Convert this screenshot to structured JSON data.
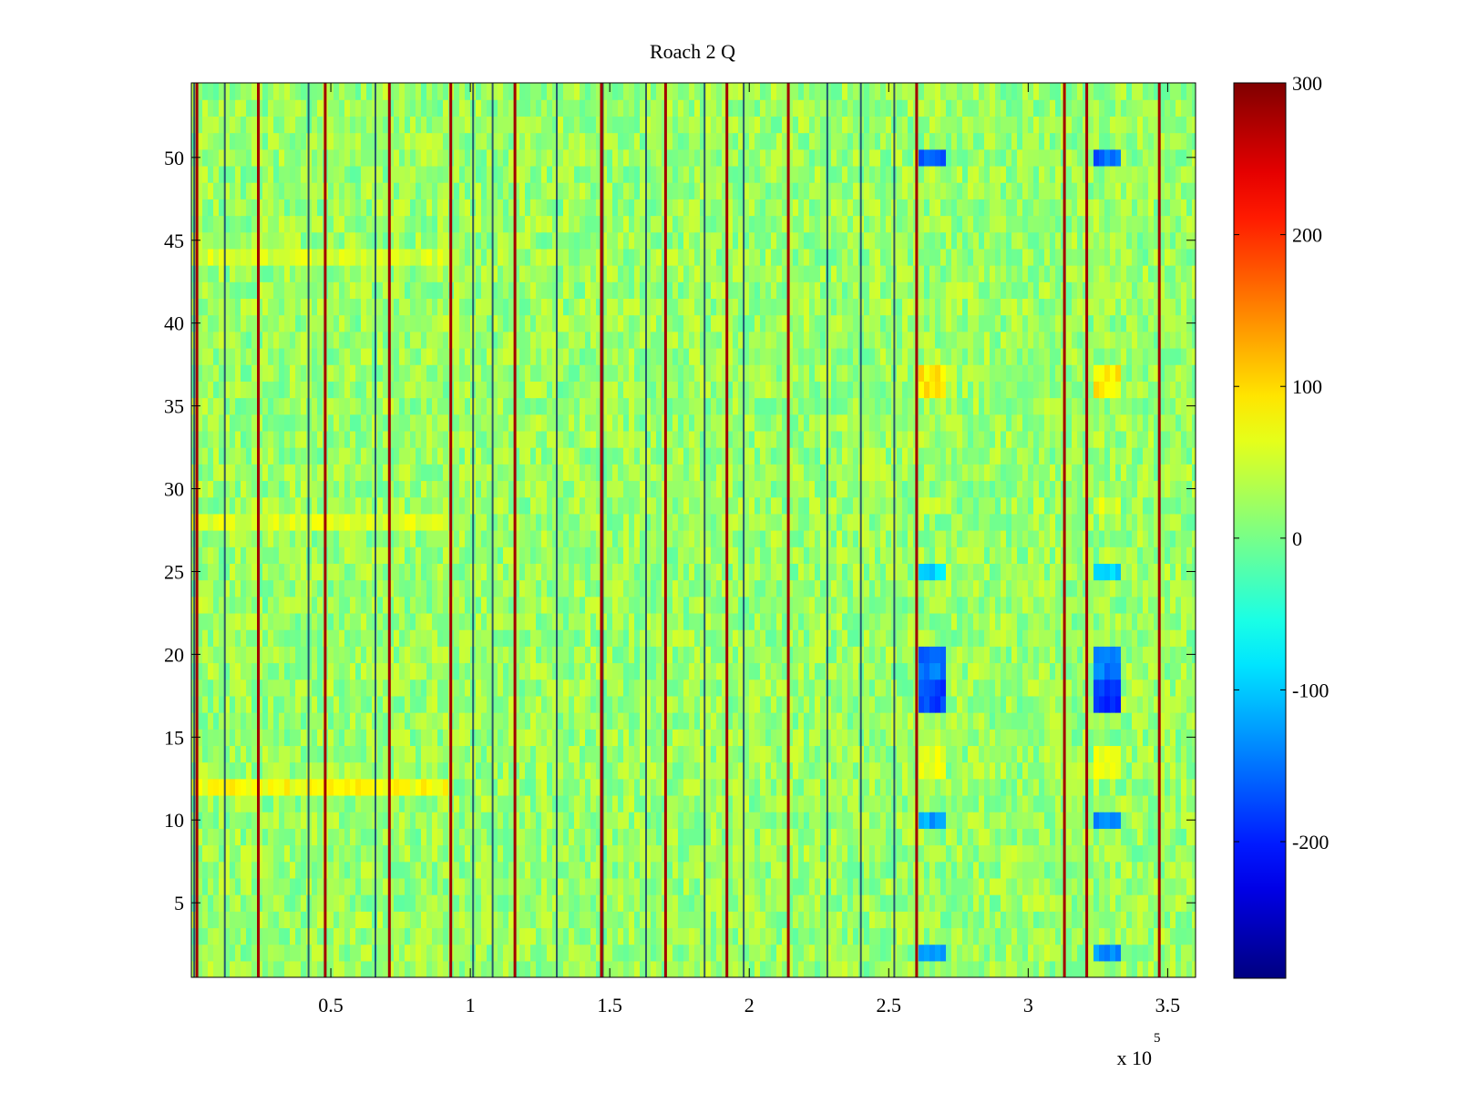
{
  "chart_data": {
    "type": "heatmap",
    "title": "Roach 2 Q",
    "xlabel": "",
    "ylabel": "",
    "x_multiplier_label": "x 10",
    "x_multiplier_exponent": "5",
    "xlim": [
      0,
      360000
    ],
    "ylim": [
      0.5,
      54.5
    ],
    "x_ticks": [
      {
        "value": 50000,
        "label": "0.5"
      },
      {
        "value": 100000,
        "label": "1"
      },
      {
        "value": 150000,
        "label": "1.5"
      },
      {
        "value": 200000,
        "label": "2"
      },
      {
        "value": 250000,
        "label": "2.5"
      },
      {
        "value": 300000,
        "label": "3"
      },
      {
        "value": 350000,
        "label": "3.5"
      }
    ],
    "y_ticks": [
      {
        "value": 5,
        "label": "5"
      },
      {
        "value": 10,
        "label": "10"
      },
      {
        "value": 15,
        "label": "15"
      },
      {
        "value": 20,
        "label": "20"
      },
      {
        "value": 25,
        "label": "25"
      },
      {
        "value": 30,
        "label": "30"
      },
      {
        "value": 35,
        "label": "35"
      },
      {
        "value": 40,
        "label": "40"
      },
      {
        "value": 45,
        "label": "45"
      },
      {
        "value": 50,
        "label": "50"
      }
    ],
    "rows": 54,
    "colormap": "jet",
    "clim": [
      -290,
      300
    ],
    "colorbar": {
      "position": "right",
      "ticks": [
        {
          "value": 300,
          "label": "300"
        },
        {
          "value": 200,
          "label": "200"
        },
        {
          "value": 100,
          "label": "100"
        },
        {
          "value": 0,
          "label": "0"
        },
        {
          "value": -100,
          "label": "-100"
        },
        {
          "value": -200,
          "label": "-200"
        }
      ]
    },
    "background_value": 20,
    "red_lines_x": [
      2000,
      24000,
      48000,
      71000,
      93000,
      116000,
      147000,
      170000,
      192000,
      214000,
      260000,
      313000,
      321000,
      347000
    ],
    "dark_lines_x": [
      1000,
      12000,
      42000,
      66000,
      101000,
      108000,
      131000,
      147500,
      163000,
      184000,
      198000,
      228000,
      240000,
      252000
    ],
    "low_bands": [
      {
        "x_range": [
          261000,
          271000
        ],
        "rows": [
          [
            2,
            3,
            -140
          ],
          [
            10,
            11,
            -120
          ],
          [
            17,
            19,
            -180
          ],
          [
            19,
            21,
            -150
          ],
          [
            25,
            26,
            -90
          ],
          [
            50,
            51,
            -170
          ]
        ]
      },
      {
        "x_range": [
          323000,
          333000
        ],
        "rows": [
          [
            2,
            3,
            -130
          ],
          [
            10,
            11,
            -140
          ],
          [
            17,
            19,
            -190
          ],
          [
            19,
            21,
            -150
          ],
          [
            25,
            26,
            -90
          ],
          [
            50,
            51,
            -160
          ]
        ]
      }
    ],
    "high_bands": [
      {
        "x_range": [
          0,
          92000
        ],
        "rows": [
          [
            12,
            13,
            75
          ],
          [
            28,
            29,
            60
          ],
          [
            44,
            45,
            55
          ]
        ]
      },
      {
        "x_range": [
          261000,
          271000
        ],
        "rows": [
          [
            36,
            38,
            90
          ],
          [
            13,
            15,
            60
          ],
          [
            29,
            30,
            55
          ]
        ]
      },
      {
        "x_range": [
          323000,
          333000
        ],
        "rows": [
          [
            36,
            38,
            85
          ],
          [
            13,
            15,
            60
          ],
          [
            29,
            30,
            55
          ]
        ]
      }
    ],
    "grid": false
  }
}
